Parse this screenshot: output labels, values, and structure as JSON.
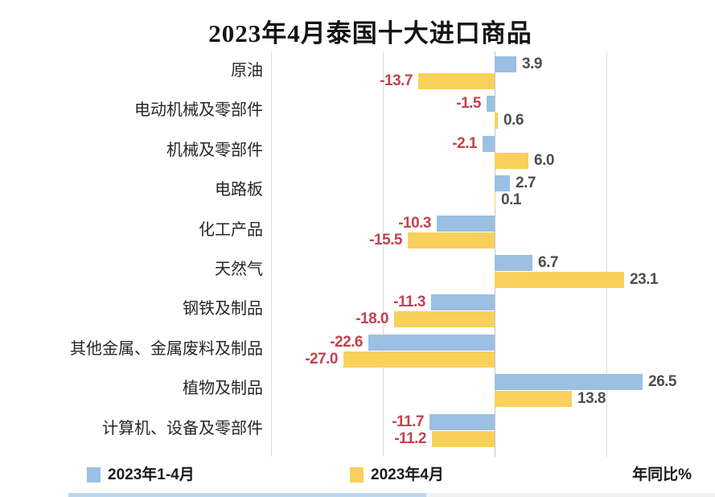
{
  "title": "2023年4月泰国十大进口商品",
  "legend": {
    "series1_label": "2023年1-4月",
    "series2_label": "2023年4月",
    "axis_note": "年同比%"
  },
  "colors": {
    "series1": "#9bc0e2",
    "series2": "#f9d05a",
    "positive_value_label": "#4d4d4d",
    "negative_value_label": "#c2424c",
    "gridline": "#dcdcdc",
    "zero_line": "#c6c6c6",
    "bottom_strip_blue": "#bcd6ed",
    "bottom_strip_gray": "#f0f0f0"
  },
  "chart_data": {
    "type": "bar",
    "orientation": "horizontal",
    "title": "2023年4月泰国十大进口商品",
    "xlabel": "年同比%",
    "xlim": [
      -40,
      30
    ],
    "gridlines": [
      -40,
      -20,
      0,
      20
    ],
    "grid": true,
    "legend_position": "bottom",
    "categories": [
      "原油",
      "电动机械及零部件",
      "机械及零部件",
      "电路板",
      "化工产品",
      "天然气",
      "钢铁及制品",
      "其他金属、金属废料及制品",
      "植物及制品",
      "计算机、设备及零部件"
    ],
    "series": [
      {
        "name": "2023年1-4月",
        "color": "#9bc0e2",
        "values": [
          3.9,
          -1.5,
          -2.1,
          2.7,
          -10.3,
          6.7,
          -11.3,
          -22.6,
          26.5,
          -11.7
        ],
        "labels": [
          "3.9",
          "-1.5",
          "-2.1",
          "2.7",
          "-10.3",
          "6.7",
          "-11.3",
          "-22.6",
          "26.5",
          "-11.7"
        ]
      },
      {
        "name": "2023年4月",
        "color": "#f9d05a",
        "values": [
          -13.7,
          0.6,
          6.0,
          0.1,
          -15.5,
          23.1,
          -18.0,
          -27.0,
          13.8,
          -11.2
        ],
        "labels": [
          "-13.7",
          "0.6",
          "6.0",
          "0.1",
          "-15.5",
          "23.1",
          "-18.0",
          "-27.0",
          "13.8",
          "-11.2"
        ]
      }
    ],
    "value_label_colors": {
      "positive": "#4d4d4d",
      "negative": "#c2424c"
    }
  }
}
